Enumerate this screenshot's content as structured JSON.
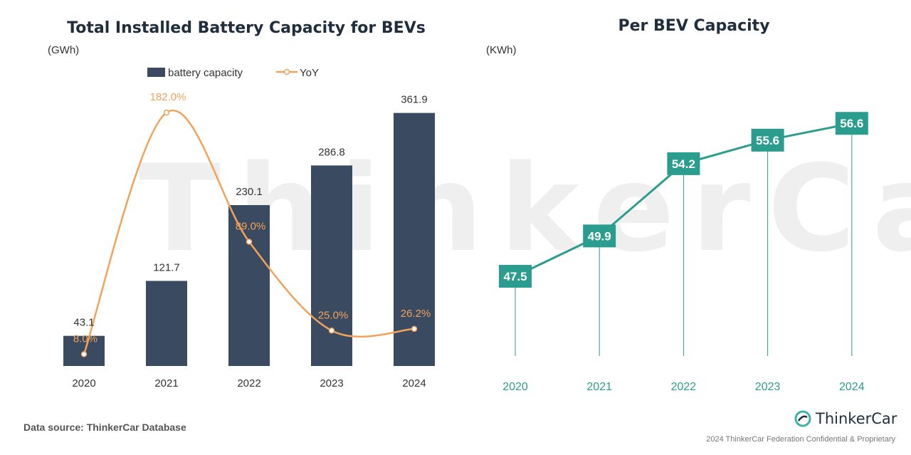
{
  "watermark": "ThinkerCar",
  "footer": {
    "source": "Data source: ThinkerCar Database",
    "brand": "ThinkerCar",
    "confidential": "2024 ThinkerCar Federation Confidential & Proprietary"
  },
  "colors": {
    "bar": "#3a4a61",
    "yoy": "#f2a25a",
    "teal": "#2a9d8f",
    "title": "#1f2d3d"
  },
  "chart_data": [
    {
      "type": "bar",
      "title": "Total Installed Battery Capacity for BEVs",
      "unit": "(GWh)",
      "categories": [
        "2020",
        "2021",
        "2022",
        "2023",
        "2024"
      ],
      "series": [
        {
          "name": "battery capacity",
          "values": [
            43.1,
            121.7,
            230.1,
            286.8,
            361.9
          ],
          "labels": [
            "43.1",
            "121.7",
            "230.1",
            "286.8",
            "361.9"
          ]
        },
        {
          "name": "YoY",
          "type": "line",
          "values": [
            8.0,
            182.0,
            89.0,
            25.0,
            26.2
          ],
          "labels": [
            "8.0%",
            "182.0%",
            "89.0%",
            "25.0%",
            "26.2%"
          ]
        }
      ],
      "legend": "top"
    },
    {
      "type": "line",
      "title": "Per BEV Capacity",
      "unit": "(KWh)",
      "categories": [
        "2020",
        "2021",
        "2022",
        "2023",
        "2024"
      ],
      "series": [
        {
          "values": [
            47.5,
            49.9,
            54.2,
            55.6,
            56.6
          ],
          "labels": [
            "47.5",
            "49.9",
            "54.2",
            "55.6",
            "56.6"
          ]
        }
      ]
    }
  ]
}
